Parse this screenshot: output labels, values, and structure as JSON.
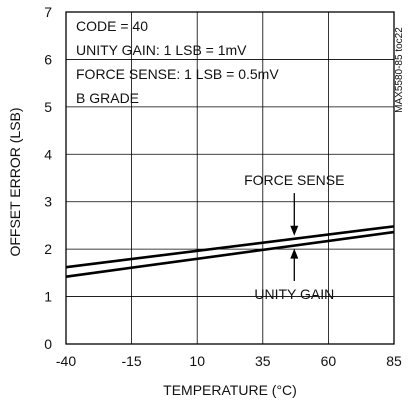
{
  "chart_data": {
    "type": "line",
    "title": "",
    "xlabel": "TEMPERATURE (°C)",
    "ylabel": "OFFSET ERROR (LSB)",
    "xlim": [
      -40,
      85
    ],
    "ylim": [
      0,
      7
    ],
    "x_ticks": [
      -40,
      -15,
      10,
      35,
      60,
      85
    ],
    "y_ticks": [
      0,
      1,
      2,
      3,
      4,
      5,
      6,
      7
    ],
    "x_tick_labels": [
      "-40",
      "-15",
      "10",
      "35",
      "60",
      "85"
    ],
    "y_tick_labels": [
      "0",
      "1",
      "2",
      "3",
      "4",
      "5",
      "6",
      "7"
    ],
    "grid": true,
    "side_label": "MAX5580-85 toc22",
    "info_lines": [
      "CODE = 40",
      "UNITY GAIN: 1 LSB = 1mV",
      "FORCE SENSE: 1 LSB = 0.5mV",
      "B GRADE"
    ],
    "series": [
      {
        "name": "FORCE SENSE",
        "x": [
          -40,
          85
        ],
        "y": [
          1.62,
          2.48
        ]
      },
      {
        "name": "UNITY GAIN",
        "x": [
          -40,
          85
        ],
        "y": [
          1.42,
          2.36
        ]
      }
    ],
    "annotations": [
      {
        "text": "FORCE SENSE",
        "series": 0,
        "x": 47,
        "label_y": 3.35
      },
      {
        "text": "UNITY GAIN",
        "series": 1,
        "x": 47,
        "label_y": 0.95
      }
    ]
  }
}
